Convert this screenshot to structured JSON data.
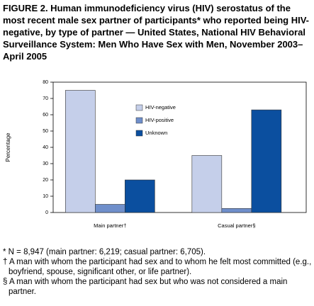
{
  "chart_data": {
    "type": "bar",
    "title": "FIGURE 2. Human immunodeficiency virus (HIV) serostatus of the most recent male sex partner of participants* who reported being HIV-negative, by type of partner — United States, National HIV Behavioral Surveillance System: Men Who Have Sex with Men, November 2003–April 2005",
    "y_label": "Percentage",
    "categories": [
      "Main partner†",
      "Casual partner§"
    ],
    "series": [
      {
        "name": "HIV-negative",
        "color": "#c5cfea",
        "values": [
          75,
          35
        ]
      },
      {
        "name": "HIV-positive",
        "color": "#6f8fcb",
        "values": [
          5,
          2.5
        ]
      },
      {
        "name": "Unknown",
        "color": "#0b4f9f",
        "values": [
          20,
          63
        ]
      }
    ],
    "ylim": [
      0,
      80
    ],
    "yticks": [
      0,
      10,
      20,
      30,
      40,
      50,
      60,
      70,
      80
    ],
    "grid": false,
    "footnotes": [
      "* N = 8,947 (main partner: 6,219; casual partner: 6,705).",
      "† A man with whom the participant had sex and to whom he felt most committed (e.g., boyfriend, spouse, significant other, or life partner).",
      "§ A man with whom the participant had sex but who was not considered a main partner."
    ]
  }
}
